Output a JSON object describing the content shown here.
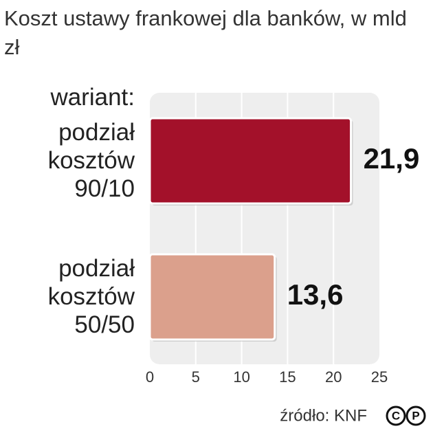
{
  "chart_data": {
    "type": "bar",
    "orientation": "horizontal",
    "title": "Koszt ustawy frankowej dla banków, w mld zł",
    "y_label": "wariant:",
    "categories": [
      "podział kosztów 90/10",
      "podział kosztów 50/50"
    ],
    "values": [
      21.9,
      13.6
    ],
    "value_labels": [
      "21,9",
      "13,6"
    ],
    "colors": [
      "#a3112a",
      "#dba08c"
    ],
    "xlim": [
      0,
      25
    ],
    "xticks": [
      0,
      5,
      10,
      15,
      20,
      25
    ],
    "grid": true,
    "source": "źródło: KNF",
    "logo_letters": [
      "C",
      "P"
    ]
  }
}
